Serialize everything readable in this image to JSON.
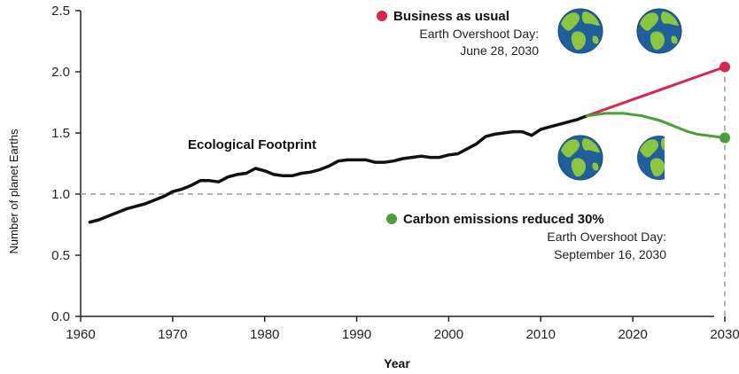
{
  "chart_data": {
    "type": "line",
    "xlabel": "Year",
    "ylabel": "Number of planet Earths",
    "xlim": [
      1960,
      2030
    ],
    "ylim": [
      0,
      2.5
    ],
    "xticks": [
      "1960",
      "1970",
      "1980",
      "1990",
      "2000",
      "2010",
      "2020",
      "2030"
    ],
    "yticks": [
      "0.0",
      "0.5",
      "1.0",
      "1.5",
      "2.0",
      "2.5"
    ],
    "reference_line": 1.0,
    "grid": false,
    "series": [
      {
        "name": "Ecological Footprint",
        "color": "#111111",
        "x": [
          1961,
          1962,
          1963,
          1964,
          1965,
          1966,
          1967,
          1968,
          1969,
          1970,
          1971,
          1972,
          1973,
          1974,
          1975,
          1976,
          1977,
          1978,
          1979,
          1980,
          1981,
          1982,
          1983,
          1984,
          1985,
          1986,
          1987,
          1988,
          1989,
          1990,
          1991,
          1992,
          1993,
          1994,
          1995,
          1996,
          1997,
          1998,
          1999,
          2000,
          2001,
          2002,
          2003,
          2004,
          2005,
          2006,
          2007,
          2008,
          2009,
          2010,
          2011,
          2012,
          2013,
          2014,
          2015
        ],
        "y": [
          0.77,
          0.79,
          0.82,
          0.85,
          0.88,
          0.9,
          0.92,
          0.95,
          0.98,
          1.02,
          1.04,
          1.07,
          1.11,
          1.11,
          1.1,
          1.14,
          1.16,
          1.17,
          1.21,
          1.19,
          1.16,
          1.15,
          1.15,
          1.17,
          1.18,
          1.2,
          1.23,
          1.27,
          1.28,
          1.28,
          1.28,
          1.26,
          1.26,
          1.27,
          1.29,
          1.3,
          1.31,
          1.3,
          1.3,
          1.32,
          1.33,
          1.37,
          1.41,
          1.47,
          1.49,
          1.5,
          1.51,
          1.51,
          1.48,
          1.53,
          1.55,
          1.57,
          1.59,
          1.61,
          1.64
        ]
      },
      {
        "name": "Business as usual",
        "color": "#d7264b",
        "x": [
          2015,
          2030
        ],
        "y": [
          1.64,
          2.04
        ]
      },
      {
        "name": "Carbon emissions reduced 30%",
        "color": "#4a9e35",
        "x": [
          2015,
          2016,
          2017,
          2018,
          2019,
          2020,
          2021,
          2022,
          2023,
          2024,
          2025,
          2026,
          2027,
          2028,
          2029,
          2030
        ],
        "y": [
          1.64,
          1.65,
          1.66,
          1.66,
          1.66,
          1.65,
          1.64,
          1.62,
          1.6,
          1.57,
          1.54,
          1.51,
          1.49,
          1.48,
          1.47,
          1.46
        ]
      }
    ],
    "annotations": {
      "footprint_label": "Ecological Footprint",
      "bau_title": "Business as usual",
      "bau_line1": "Earth Overshoot Day:",
      "bau_line2": "June 28, 2030",
      "carbon_title": "Carbon emissions reduced 30%",
      "carbon_line1": "Earth Overshoot Day:",
      "carbon_line2": "September 16, 2030"
    },
    "icons": {
      "bau": [
        "earth-globe-icon",
        "earth-globe-icon"
      ],
      "carbon": [
        "earth-globe-icon",
        "half-earth-globe-icon"
      ]
    },
    "colors": {
      "ocean": "#1f5f9c",
      "land": "#8cc63f",
      "reference": "#9a9a9a"
    }
  }
}
